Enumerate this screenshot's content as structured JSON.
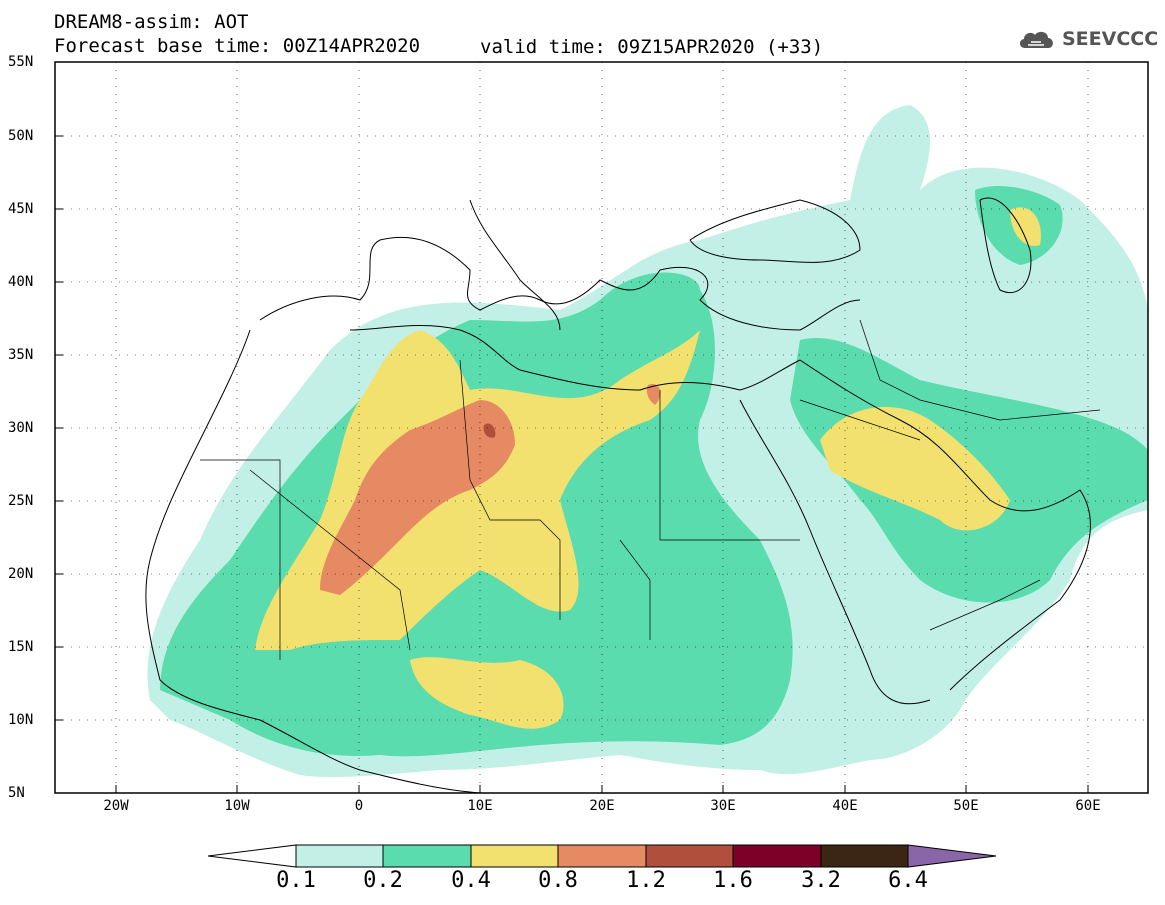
{
  "header": {
    "title": "DREAM8-assim: AOT",
    "base_time": "Forecast base time: 00Z14APR2020",
    "valid_time": "valid time: 09Z15APR2020 (+33)",
    "logo_text": "SEEVCCC",
    "logo_icon": "cloud-icon"
  },
  "axes": {
    "lat_labels": [
      "55N",
      "50N",
      "45N",
      "40N",
      "35N",
      "30N",
      "25N",
      "20N",
      "15N",
      "10N",
      "5N"
    ],
    "lon_labels": [
      "20W",
      "10W",
      "0",
      "10E",
      "20E",
      "30E",
      "40E",
      "50E",
      "60E"
    ]
  },
  "colorbar": {
    "labels": [
      "0.1",
      "0.2",
      "0.4",
      "0.8",
      "1.2",
      "1.6",
      "3.2",
      "6.4"
    ],
    "colors": [
      "#ffffff",
      "#c3f0e6",
      "#5bdcaf",
      "#f2e06f",
      "#e58a63",
      "#b0503c",
      "#7c0027",
      "#3a2613",
      "#8a66a8"
    ]
  },
  "map": {
    "lat_range": [
      5,
      55
    ],
    "lon_range": [
      -25,
      65
    ],
    "field": "AOT",
    "grid": "dotted"
  },
  "colors": {
    "level_0_1": "#c3f0e6",
    "level_0_2": "#5bdcaf",
    "level_0_4": "#f2e06f",
    "level_0_8": "#e58a63",
    "level_1_2": "#b0503c",
    "level_1_6": "#7c0027"
  }
}
